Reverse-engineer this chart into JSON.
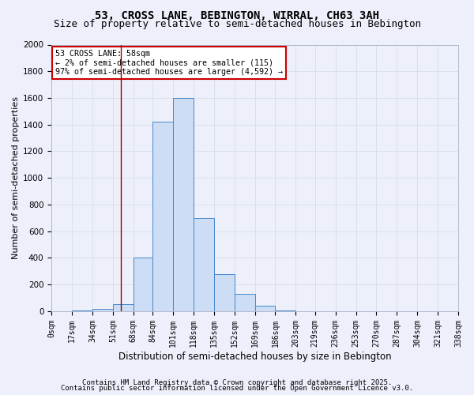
{
  "title1": "53, CROSS LANE, BEBINGTON, WIRRAL, CH63 3AH",
  "title2": "Size of property relative to semi-detached houses in Bebington",
  "xlabel": "Distribution of semi-detached houses by size in Bebington",
  "ylabel": "Number of semi-detached properties",
  "footnote1": "Contains HM Land Registry data © Crown copyright and database right 2025.",
  "footnote2": "Contains public sector information licensed under the Open Government Licence v3.0.",
  "annotation_title": "53 CROSS LANE: 58sqm",
  "annotation_line1": "← 2% of semi-detached houses are smaller (115)",
  "annotation_line2": "97% of semi-detached houses are larger (4,592) →",
  "property_size": 58,
  "bin_edges": [
    0,
    17,
    34,
    51,
    68,
    84,
    101,
    118,
    135,
    152,
    169,
    186,
    203,
    219,
    236,
    253,
    270,
    287,
    304,
    321,
    338
  ],
  "bin_labels": [
    "0sqm",
    "17sqm",
    "34sqm",
    "51sqm",
    "68sqm",
    "84sqm",
    "101sqm",
    "118sqm",
    "135sqm",
    "152sqm",
    "169sqm",
    "186sqm",
    "203sqm",
    "219sqm",
    "236sqm",
    "253sqm",
    "270sqm",
    "287sqm",
    "304sqm",
    "321sqm",
    "338sqm"
  ],
  "counts": [
    0,
    5,
    20,
    55,
    400,
    1420,
    1600,
    700,
    280,
    130,
    40,
    5,
    2,
    1,
    0,
    0,
    0,
    0,
    0,
    0
  ],
  "bar_color": "#ccddf5",
  "bar_edge_color": "#4488cc",
  "red_line_x": 58,
  "ylim": [
    0,
    2000
  ],
  "background_color": "#edf0fa",
  "grid_color": "#d8dce8",
  "annotation_box_color": "#ffffff",
  "annotation_border_color": "#cc0000",
  "title1_fontsize": 10,
  "title2_fontsize": 9,
  "ylabel_fontsize": 8,
  "xlabel_fontsize": 8.5,
  "tick_fontsize": 7,
  "footnote_fontsize": 6.5
}
